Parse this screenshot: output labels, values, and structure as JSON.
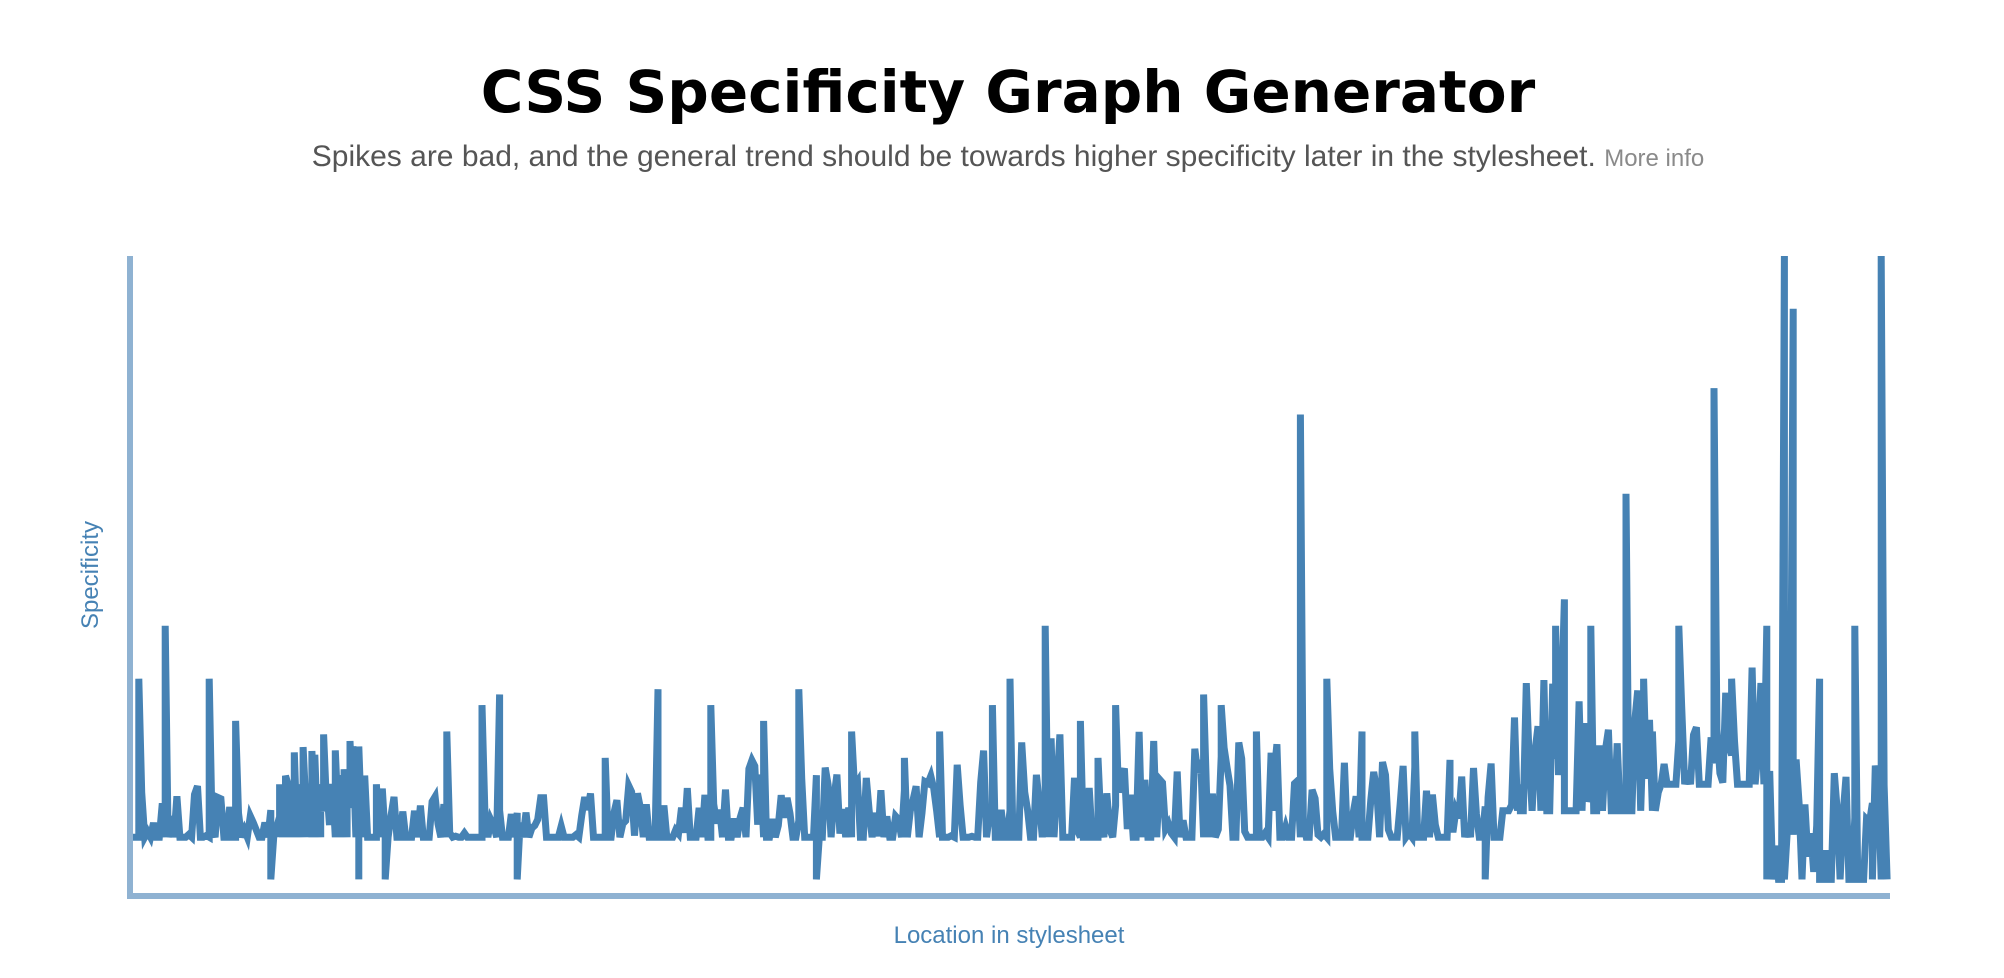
{
  "header": {
    "title": "CSS Specificity Graph Generator",
    "subtitle": "Spikes are bad, and the general trend should be towards higher specificity later in the stylesheet.",
    "more_info_label": "More info"
  },
  "colors": {
    "line": "#4682b4",
    "axis": "#8fb2d2",
    "title": "#000000",
    "subtitle": "#555555",
    "link": "#8a8a8a"
  },
  "chart_data": {
    "type": "line",
    "title": "",
    "xlabel": "Location in stylesheet",
    "ylabel": "Specificity",
    "grid": false,
    "legend": "none",
    "ylim": [
      0,
      12
    ],
    "xlim": [
      0,
      1
    ],
    "series": [
      {
        "segments": [
          {
            "x0": 0.0,
            "x1": 0.18,
            "lo": 1.0,
            "hi": 2.0,
            "seed": 11,
            "spikes": [
              [
                0.005,
                4
              ],
              [
                0.02,
                5
              ],
              [
                0.045,
                4
              ],
              [
                0.06,
                3.2
              ],
              [
                0.08,
                0.2
              ],
              [
                0.085,
                1
              ],
              [
                0.09,
                2
              ],
              [
                0.1,
                1
              ],
              [
                0.13,
                0.2
              ],
              [
                0.14,
                2
              ]
            ]
          },
          {
            "x0": 0.085,
            "x1": 0.135,
            "lo": 2.0,
            "hi": 3.1,
            "seed": 13,
            "spikes": []
          },
          {
            "x0": 0.18,
            "x1": 0.2,
            "lo": 1.0,
            "hi": 1.2,
            "seed": 14,
            "spikes": [
              [
                0.145,
                0.2
              ]
            ]
          },
          {
            "x0": 0.2,
            "x1": 0.32,
            "lo": 1.0,
            "hi": 2.0,
            "seed": 17,
            "spikes": [
              [
                0.18,
                3
              ],
              [
                0.2,
                3.5
              ],
              [
                0.21,
                3.7
              ],
              [
                0.22,
                0.2
              ],
              [
                0.27,
                2.5
              ],
              [
                0.3,
                3.8
              ]
            ]
          },
          {
            "x0": 0.32,
            "x1": 0.48,
            "lo": 1.0,
            "hi": 2.5,
            "seed": 19,
            "spikes": [
              [
                0.33,
                3.5
              ],
              [
                0.36,
                3.2
              ],
              [
                0.38,
                3.8
              ],
              [
                0.39,
                0.2
              ],
              [
                0.41,
                3
              ],
              [
                0.44,
                2.5
              ],
              [
                0.46,
                3
              ]
            ]
          },
          {
            "x0": 0.48,
            "x1": 0.66,
            "lo": 1.0,
            "hi": 3.0,
            "seed": 23,
            "spikes": [
              [
                0.49,
                3.5
              ],
              [
                0.5,
                4
              ],
              [
                0.52,
                5
              ],
              [
                0.54,
                3.2
              ],
              [
                0.55,
                2.5
              ],
              [
                0.56,
                3.5
              ],
              [
                0.61,
                3.7
              ],
              [
                0.62,
                3.5
              ],
              [
                0.64,
                3
              ],
              [
                0.65,
                2.2
              ]
            ]
          },
          {
            "x0": 0.66,
            "x1": 0.78,
            "lo": 1.0,
            "hi": 2.5,
            "seed": 29,
            "spikes": [
              [
                0.665,
                9
              ],
              [
                0.68,
                4
              ],
              [
                0.7,
                3
              ],
              [
                0.73,
                3
              ],
              [
                0.75,
                1.5
              ],
              [
                0.77,
                0.2
              ],
              [
                0.79,
                2
              ]
            ]
          },
          {
            "x0": 0.78,
            "x1": 0.87,
            "lo": 1.5,
            "hi": 4.0,
            "seed": 31,
            "spikes": [
              [
                0.81,
                5
              ],
              [
                0.815,
                5.5
              ],
              [
                0.83,
                5
              ],
              [
                0.85,
                7.5
              ],
              [
                0.86,
                4
              ],
              [
                0.865,
                3
              ]
            ]
          },
          {
            "x0": 0.87,
            "x1": 0.93,
            "lo": 2.0,
            "hi": 4.5,
            "seed": 37,
            "spikes": [
              [
                0.88,
                5
              ],
              [
                0.9,
                9.5
              ],
              [
                0.91,
                4
              ],
              [
                0.93,
                5
              ]
            ]
          },
          {
            "x0": 0.93,
            "x1": 1.0,
            "lo": 0.2,
            "hi": 2.5,
            "seed": 41,
            "spikes": [
              [
                0.94,
                12
              ],
              [
                0.945,
                11
              ],
              [
                0.96,
                4
              ],
              [
                0.98,
                5
              ],
              [
                0.99,
                0.2
              ],
              [
                0.995,
                12
              ]
            ]
          }
        ]
      }
    ]
  }
}
